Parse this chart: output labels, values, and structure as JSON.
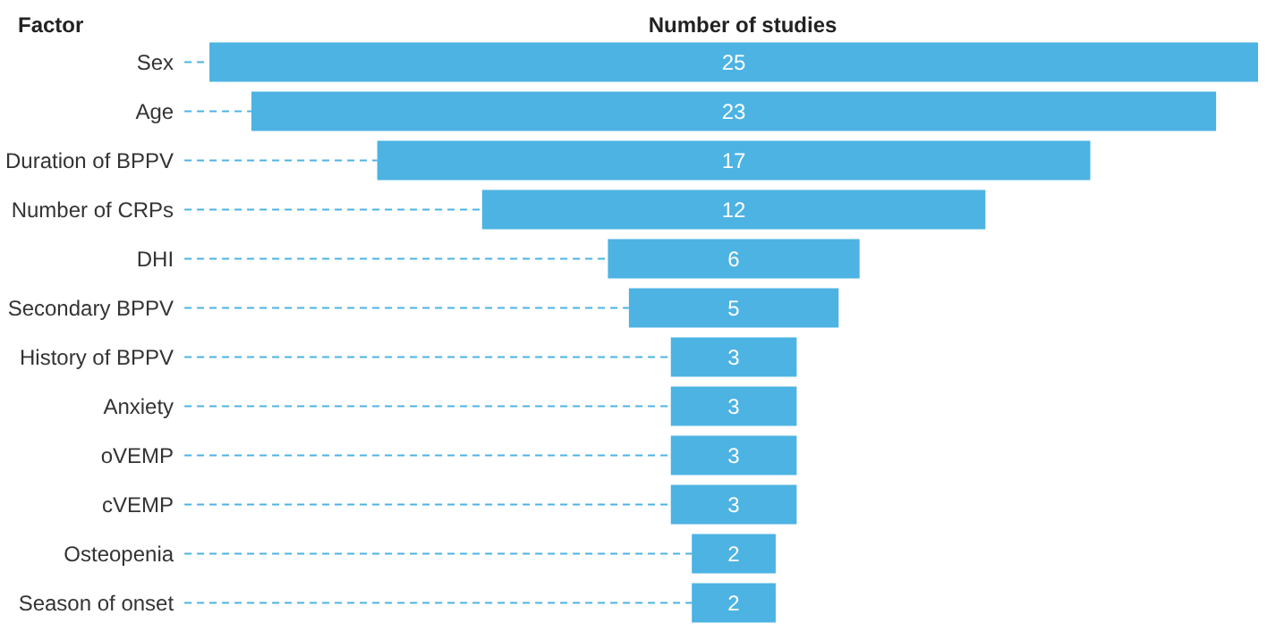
{
  "chart_data": {
    "type": "other",
    "xlabel": "Number of studies",
    "ylabel": "Factor",
    "categories": [
      "Sex",
      "Age",
      "Duration of BPPV",
      "Number of CRPs",
      "DHI",
      "Secondary BPPV",
      "History of BPPV",
      "Anxiety",
      "oVEMP",
      "cVEMP",
      "Osteopenia",
      "Season of onset"
    ],
    "values": [
      25,
      23,
      17,
      12,
      6,
      5,
      3,
      3,
      3,
      3,
      2,
      2
    ],
    "color": "#4cb3e3",
    "data_labels": true
  }
}
